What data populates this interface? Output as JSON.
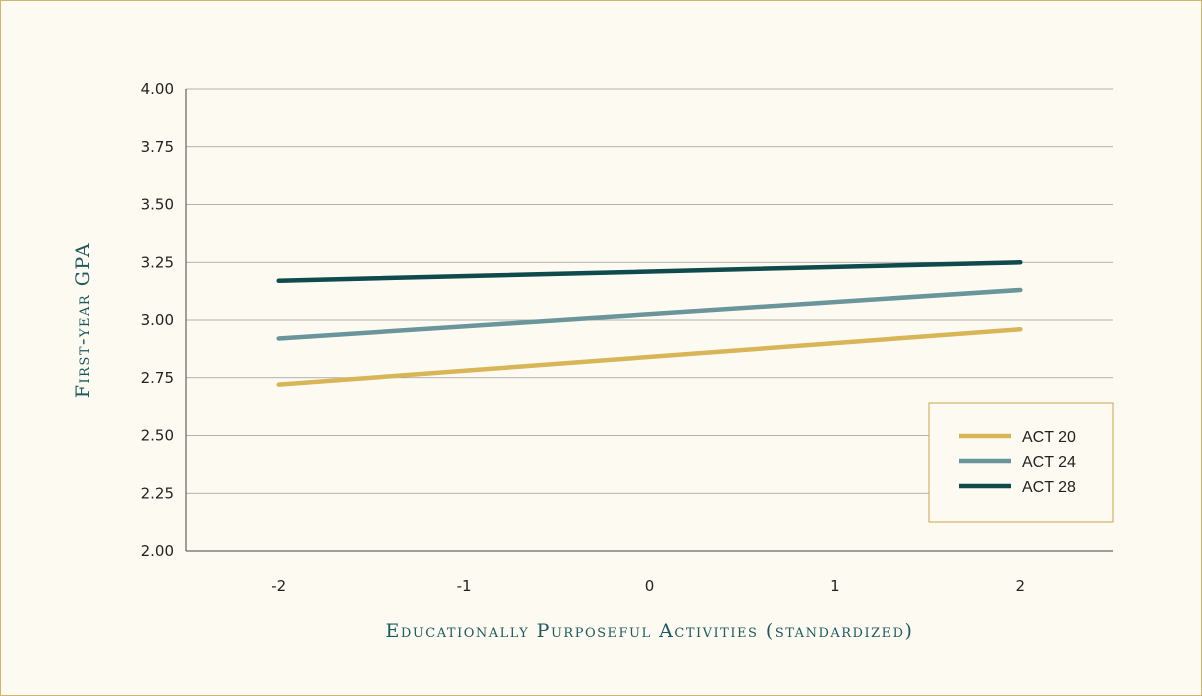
{
  "chart_data": {
    "type": "line",
    "title": "",
    "xlabel": "Educationally Purposeful Activities (standardized)",
    "ylabel": "First-year GPA",
    "x": [
      -2,
      2
    ],
    "x_ticks": [
      "-2",
      "-1",
      "0",
      "1",
      "2"
    ],
    "y_ticks": [
      "4.00",
      "3.75",
      "3.50",
      "3.25",
      "3.00",
      "2.75",
      "2.50",
      "2.25",
      "2.00"
    ],
    "xlim": [
      -2.5,
      2.5
    ],
    "ylim": [
      2.0,
      4.0
    ],
    "grid": true,
    "legend_position": "bottom-right",
    "series": [
      {
        "name": "ACT 20",
        "color": "#d8b557",
        "values": [
          2.72,
          2.96
        ]
      },
      {
        "name": "ACT 24",
        "color": "#6a959a",
        "values": [
          2.92,
          3.13
        ]
      },
      {
        "name": "ACT 28",
        "color": "#0f4a4d",
        "values": [
          3.17,
          3.25
        ]
      }
    ]
  },
  "colors": {
    "background": "#fdfaf2",
    "border": "#d2b66a",
    "grid": "#9a9a9a",
    "axis_title": "#1d5a5e"
  }
}
